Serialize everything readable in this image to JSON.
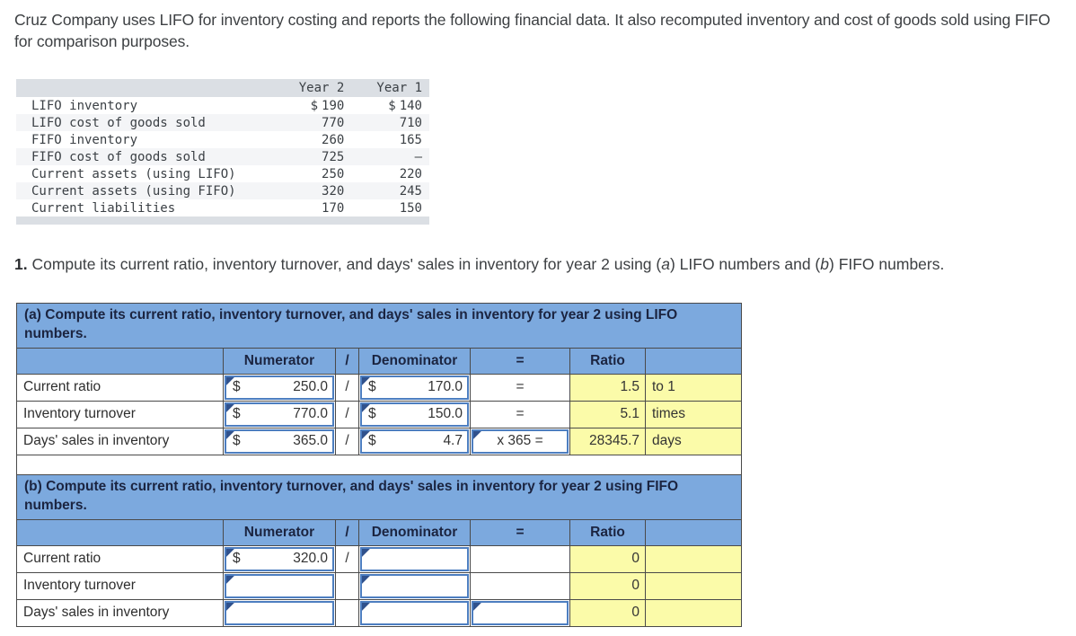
{
  "intro": "Cruz Company uses LIFO for inventory costing and reports the following financial data. It also recomputed inventory and cost of goods sold using FIFO for comparison purposes.",
  "financial_table": {
    "col_headers": {
      "year2": "Year 2",
      "year1": "Year 1"
    },
    "rows": [
      {
        "label": "LIFO inventory",
        "y2_prefix": "$",
        "y2": "190",
        "y1_prefix": "$",
        "y1": "140"
      },
      {
        "label": "LIFO cost of goods sold",
        "y2_prefix": "",
        "y2": "770",
        "y1_prefix": "",
        "y1": "710"
      },
      {
        "label": "FIFO inventory",
        "y2_prefix": "",
        "y2": "260",
        "y1_prefix": "",
        "y1": "165"
      },
      {
        "label": "FIFO cost of goods sold",
        "y2_prefix": "",
        "y2": "725",
        "y1_prefix": "",
        "y1": "–"
      },
      {
        "label": "Current assets (using LIFO)",
        "y2_prefix": "",
        "y2": "250",
        "y1_prefix": "",
        "y1": "220"
      },
      {
        "label": "Current assets (using FIFO)",
        "y2_prefix": "",
        "y2": "320",
        "y1_prefix": "",
        "y1": "245"
      },
      {
        "label": "Current liabilities",
        "y2_prefix": "",
        "y2": "170",
        "y1_prefix": "",
        "y1": "150"
      }
    ]
  },
  "question": {
    "number": "1.",
    "part1": " Compute its current ratio, inventory turnover, and days' sales in inventory for year 2 using (",
    "italic_a": "a",
    "part2": ") LIFO numbers and (",
    "italic_b": "b",
    "part3": ") FIFO numbers."
  },
  "worksheet_a": {
    "title": "(a) Compute its current ratio, inventory turnover, and days' sales in inventory for year 2 using LIFO numbers.",
    "headers": {
      "numerator": "Numerator",
      "slash": "/",
      "denominator": "Denominator",
      "equals": "=",
      "ratio": "Ratio"
    },
    "rows": [
      {
        "label": "Current ratio",
        "num_prefix": "$",
        "num": "250.0",
        "slash": "/",
        "den_prefix": "$",
        "den": "170.0",
        "eq": "=",
        "ratio": "1.5",
        "unit": "to 1"
      },
      {
        "label": "Inventory turnover",
        "num_prefix": "$",
        "num": "770.0",
        "slash": "/",
        "den_prefix": "$",
        "den": "150.0",
        "eq": "=",
        "ratio": "5.1",
        "unit": "times"
      },
      {
        "label": "Days' sales in inventory",
        "num_prefix": "$",
        "num": "365.0",
        "slash": "/",
        "den_prefix": "$",
        "den": "4.7",
        "eq_input": "x 365 =",
        "ratio": "28345.7",
        "unit": "days"
      }
    ]
  },
  "worksheet_b": {
    "title": "(b) Compute its current ratio, inventory turnover, and days' sales in inventory for year 2 using FIFO numbers.",
    "headers": {
      "numerator": "Numerator",
      "slash": "/",
      "denominator": "Denominator",
      "equals": "=",
      "ratio": "Ratio"
    },
    "rows": [
      {
        "label": "Current ratio",
        "num_prefix": "$",
        "num": "320.0",
        "slash": "/",
        "den": "",
        "ratio": "0",
        "unit": ""
      },
      {
        "label": "Inventory turnover",
        "num": "",
        "den": "",
        "ratio": "0",
        "unit": ""
      },
      {
        "label": "Days' sales in inventory",
        "num": "",
        "den": "",
        "eq_input": "",
        "ratio": "0",
        "unit": ""
      }
    ]
  },
  "colors": {
    "header_blue": "#7CA9DE",
    "answer_yellow": "#FBFBA9",
    "input_border_blue": "#4D7EC0",
    "marker_navy": "#30518C"
  }
}
